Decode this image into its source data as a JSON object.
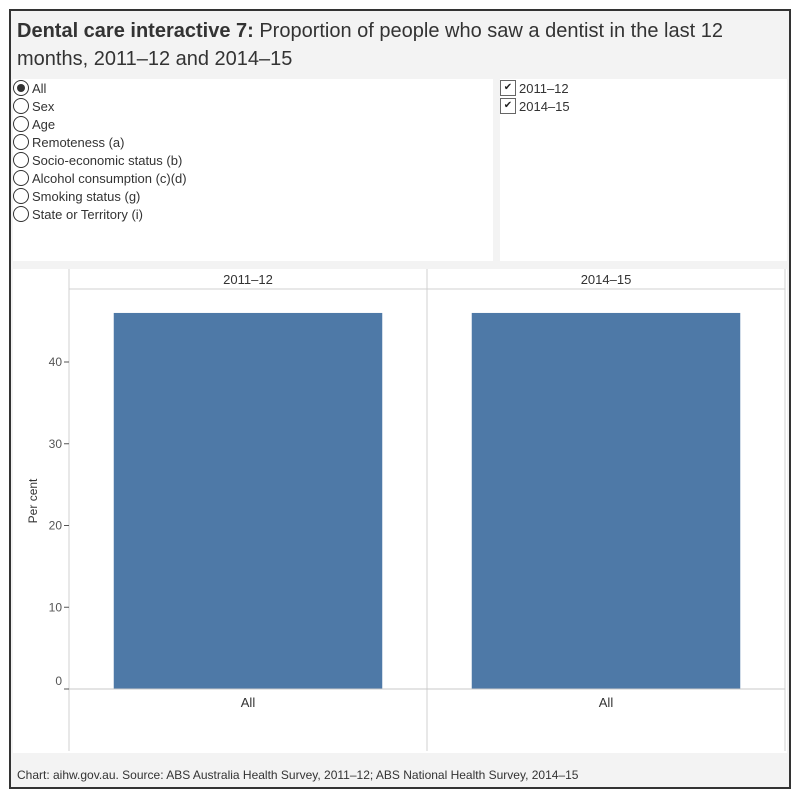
{
  "title": {
    "bold": "Dental care interactive 7:",
    "rest": " Proportion of people who saw a dentist in the last 12 months, 2011–12 and 2014–15"
  },
  "filters": {
    "radio_options": [
      {
        "label": "All",
        "selected": true
      },
      {
        "label": "Sex",
        "selected": false
      },
      {
        "label": "Age",
        "selected": false
      },
      {
        "label": "Remoteness (a)",
        "selected": false
      },
      {
        "label": "Socio-economic status (b)",
        "selected": false
      },
      {
        "label": "Alcohol consumption (c)(d)",
        "selected": false
      },
      {
        "label": "Smoking status (g)",
        "selected": false
      },
      {
        "label": "State or Territory (i)",
        "selected": false
      }
    ],
    "check_options": [
      {
        "label": "2011–12",
        "checked": true
      },
      {
        "label": "2014–15",
        "checked": true
      }
    ]
  },
  "chart_data": {
    "type": "bar",
    "title": "Proportion of people who saw a dentist in the last 12 months, 2011–12 and 2014–15",
    "panels": [
      "2011–12",
      "2014–15"
    ],
    "categories": [
      "All"
    ],
    "series": [
      {
        "name": "2011–12",
        "values": [
          46
        ]
      },
      {
        "name": "2014–15",
        "values": [
          46
        ]
      }
    ],
    "xlabel": "",
    "ylabel": "Per cent",
    "ylim": [
      -2.5,
      48
    ],
    "yticks": [
      0,
      10,
      20,
      30,
      40
    ],
    "grid": false,
    "bar_color": "#4e79a7"
  },
  "footer": "Chart: aihw.gov.au. Source: ABS Australia Health Survey, 2011–12; ABS National Health Survey, 2014–15"
}
